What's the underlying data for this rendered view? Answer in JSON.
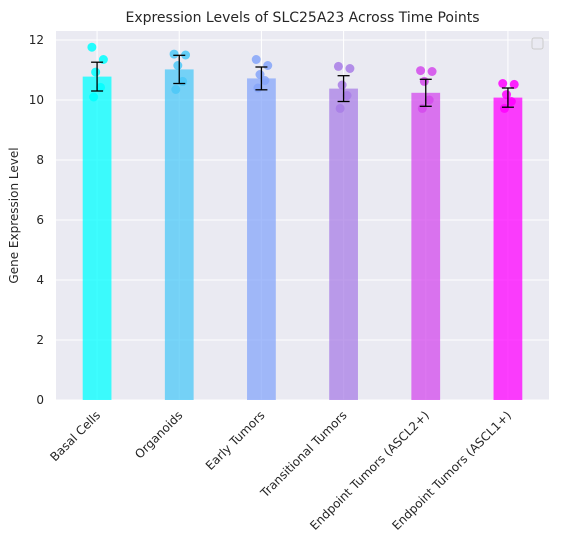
{
  "chart_data": {
    "type": "bar",
    "title": "Expression Levels of SLC25A23 Across Time Points",
    "xlabel": "",
    "ylabel": "Gene Expression Level",
    "ylim": [
      0,
      12.3
    ],
    "yticks": [
      0,
      2,
      4,
      6,
      8,
      10,
      12
    ],
    "grid": true,
    "legend": "top-right (empty)",
    "categories": [
      "Basal Cells",
      "Organoids",
      "Early Tumors",
      "Transitional Tumors",
      "Endpoint Tumors (ASCL2+)",
      "Endpoint Tumors (ASCL1+)"
    ],
    "values": [
      10.78,
      11.02,
      10.72,
      10.38,
      10.24,
      10.08
    ],
    "error": [
      0.48,
      0.47,
      0.38,
      0.43,
      0.45,
      0.32
    ],
    "colors": [
      "#00ffff",
      "#4cc8f7",
      "#85a5f9",
      "#a87de6",
      "#d34aec",
      "#ff00ff"
    ],
    "points": [
      [
        11.76,
        11.35,
        10.93,
        10.42,
        10.1
      ],
      [
        11.53,
        11.5,
        11.15,
        10.62,
        10.35
      ],
      [
        11.35,
        11.15,
        10.85,
        10.65,
        10.4
      ],
      [
        11.12,
        11.05,
        10.5,
        10.15,
        9.72
      ],
      [
        10.98,
        10.95,
        10.62,
        10.0,
        9.72
      ],
      [
        10.55,
        10.52,
        10.18,
        9.95,
        9.72
      ]
    ]
  }
}
